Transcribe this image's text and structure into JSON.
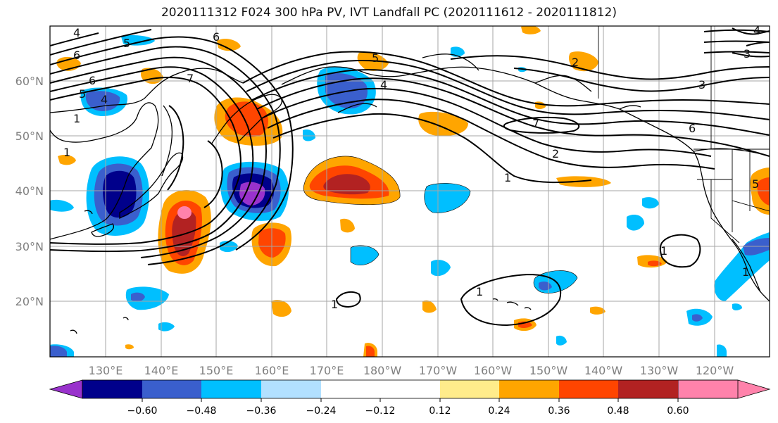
{
  "title": "2020111312 F024 300 hPa PV, IVT Landfall PC (2020111612 - 2020111812)",
  "lat_labels": [
    "60°N",
    "50°N",
    "40°N",
    "30°N",
    "20°N"
  ],
  "lon_labels": [
    "130°E",
    "140°E",
    "150°E",
    "160°E",
    "170°E",
    "180°W",
    "170°W",
    "160°W",
    "150°W",
    "140°W",
    "130°W",
    "120°W"
  ],
  "colorbar": {
    "ticks": [
      "−0.60",
      "−0.48",
      "−0.36",
      "−0.24",
      "−0.12",
      "0.12",
      "0.24",
      "0.36",
      "0.48",
      "0.60"
    ],
    "colors": [
      "#9932cc",
      "#00008b",
      "#3a5fcd",
      "#00bfff",
      "#b2e0ff",
      "#ffffff",
      "#ffec8b",
      "#ffa500",
      "#ff4500",
      "#b22222",
      "#ff82ab"
    ]
  },
  "contour_labels": [
    "4",
    "5",
    "6",
    "6",
    "5",
    "4",
    "1",
    "1",
    "7",
    "6",
    "5",
    "4",
    "7",
    "2",
    "1",
    "1",
    "1",
    "1",
    "2",
    "3",
    "3",
    "4",
    "6",
    "5",
    "1"
  ]
}
